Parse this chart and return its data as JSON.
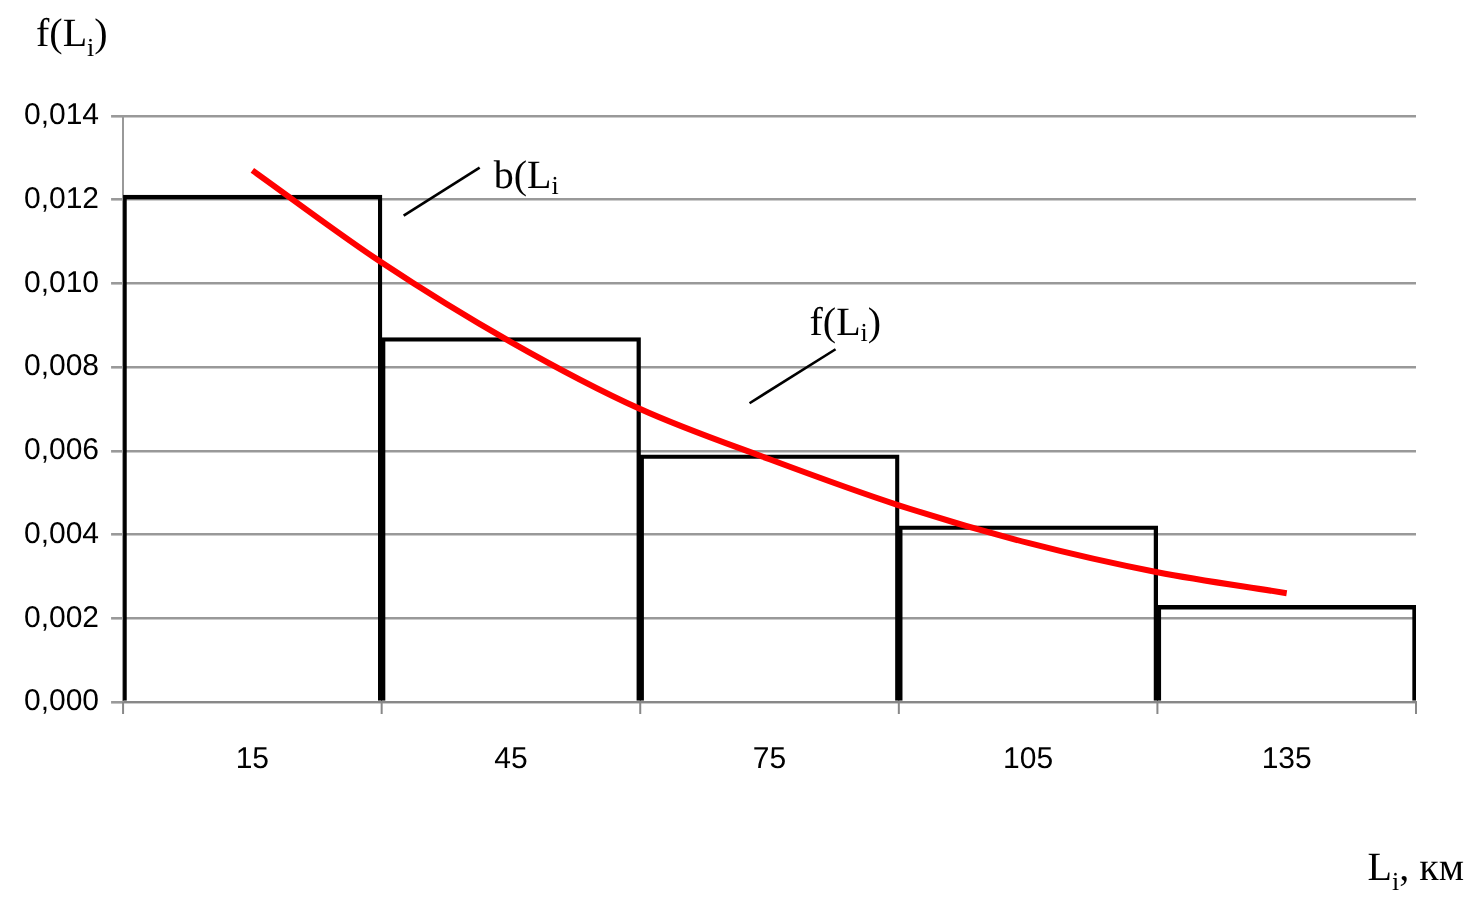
{
  "chart_data": {
    "type": "histogram",
    "ylabel": "f(L$_{i}$)",
    "xlabel": "L$_{i}$, км",
    "bins": [
      0,
      30,
      60,
      90,
      120,
      150
    ],
    "values": [
      0.0121,
      0.0087,
      0.0059,
      0.0042,
      0.0023
    ],
    "color": "#000000",
    "series": [
      {
        "type": "line",
        "color": "#ff0000",
        "x": [
          15,
          30,
          45,
          60,
          75,
          90,
          105,
          120,
          135
        ],
        "values": [
          0.0127,
          0.0105,
          0.0086,
          0.007,
          0.0058,
          0.0047,
          0.0038,
          0.0031,
          0.0026
        ]
      }
    ],
    "xlim": [
      0,
      150
    ],
    "xticks": [
      {
        "value": 0,
        "label": null
      },
      15,
      {
        "value": 30,
        "label": null
      },
      45,
      {
        "value": 60,
        "label": null
      },
      75,
      {
        "value": 90,
        "label": null
      },
      105,
      {
        "value": 120,
        "label": null
      },
      135,
      {
        "value": 150,
        "label": null
      }
    ],
    "ylim": [
      0,
      0.014
    ],
    "yticks": [
      {
        "value": 0,
        "label": "0,000"
      },
      {
        "value": 0.002,
        "label": "0,002"
      },
      {
        "value": 0.004,
        "label": "0,004"
      },
      {
        "value": 0.006,
        "label": "0,006"
      },
      {
        "value": 0.008,
        "label": "0,008"
      },
      {
        "value": 0.01,
        "label": "0,010"
      },
      {
        "value": 0.012,
        "label": "0,012"
      },
      {
        "value": 0.014,
        "label": "0,014"
      }
    ],
    "grid": "y",
    "annotations": [
      {
        "text": "b(L$_{i}$",
        "x": 30,
        "y": 0.0121
      },
      {
        "text": "f(L$_{i}$)",
        "x": 75,
        "y": 0.0058
      }
    ]
  }
}
